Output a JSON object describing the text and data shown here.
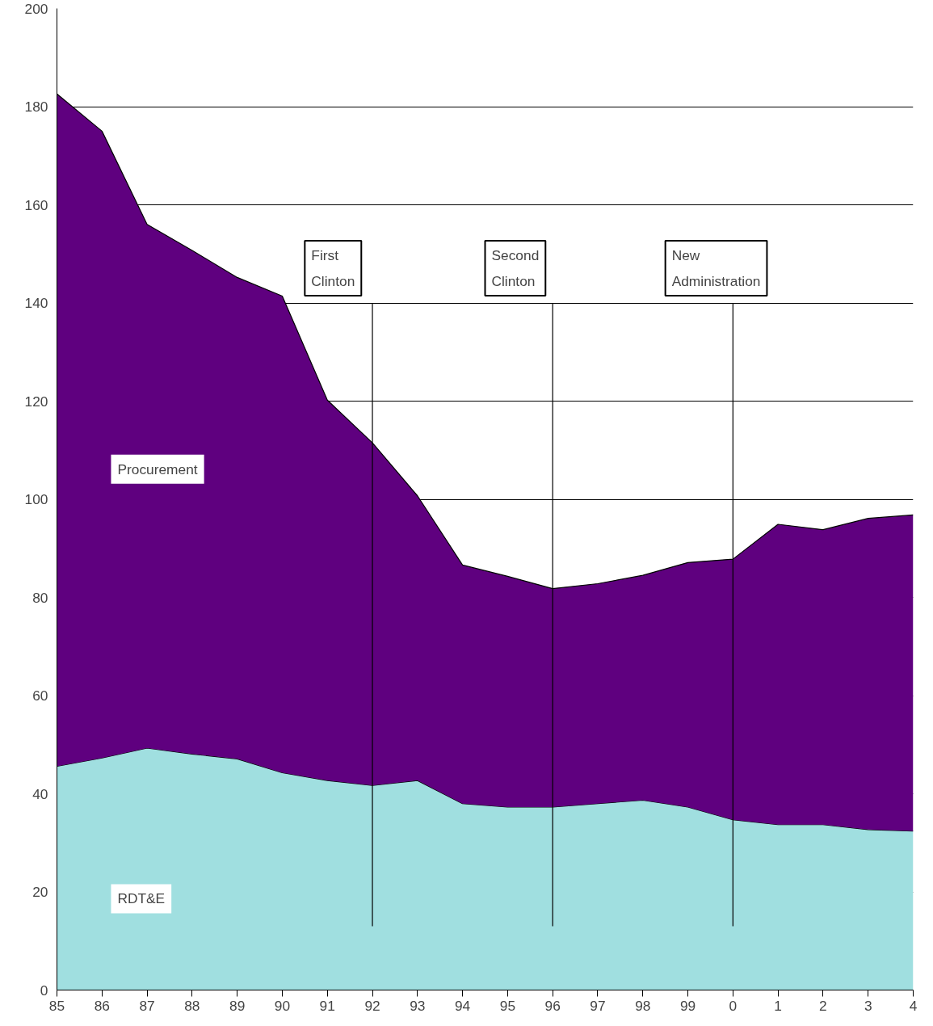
{
  "chart_data": {
    "type": "area",
    "stacked": true,
    "categories": [
      "85",
      "86",
      "87",
      "88",
      "89",
      "90",
      "91",
      "92",
      "93",
      "94",
      "95",
      "96",
      "97",
      "98",
      "99",
      "0",
      "1",
      "2",
      "3",
      "4"
    ],
    "series": [
      {
        "name": "RDT&E",
        "color": "#a0dfe0",
        "values": [
          45.6,
          47.3,
          49.3,
          48.1,
          47.1,
          44.3,
          42.7,
          41.7,
          42.7,
          38.0,
          37.3,
          37.3,
          38.0,
          38.7,
          37.3,
          34.7,
          33.7,
          33.7,
          32.7,
          32.4
        ]
      },
      {
        "name": "Procurement",
        "color": "#5f007f",
        "values": [
          137.0,
          127.7,
          106.7,
          102.6,
          98.1,
          97.1,
          77.5,
          69.8,
          58.0,
          48.6,
          47.0,
          44.5,
          44.8,
          45.8,
          49.8,
          53.1,
          61.2,
          60.1,
          63.4,
          64.4
        ]
      }
    ],
    "ylim": [
      0,
      200
    ],
    "yticks": [
      0,
      20,
      40,
      60,
      80,
      100,
      120,
      140,
      160,
      180,
      200
    ],
    "grid": "y",
    "ref_lines": [
      {
        "axis": "x",
        "value": "92",
        "label": "First\nClinton"
      },
      {
        "axis": "x",
        "value": "96",
        "label": "Second\nClinton"
      },
      {
        "axis": "x",
        "value": "0",
        "label": "New\nAdministration"
      }
    ]
  }
}
